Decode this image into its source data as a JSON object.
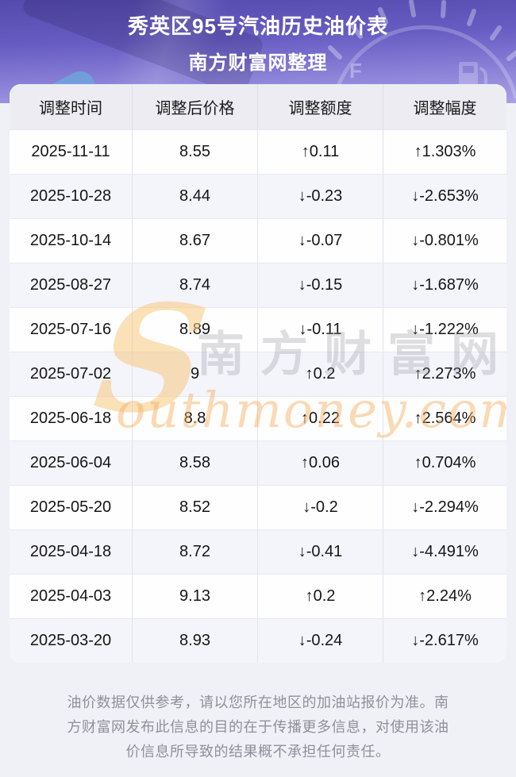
{
  "hero": {
    "title_line1": "秀英区95号汽油历史油价表",
    "title_line2": "南方财富网整理",
    "gauge_full_label": "F"
  },
  "table": {
    "columns": [
      "调整时间",
      "调整后价格",
      "调整额度",
      "调整幅度"
    ],
    "rows": [
      {
        "date": "2025-11-11",
        "price": "8.55",
        "change": "↑0.11",
        "percent": "↑1.303%",
        "trend": "up"
      },
      {
        "date": "2025-10-28",
        "price": "8.44",
        "change": "↓-0.23",
        "percent": "↓-2.653%",
        "trend": "down"
      },
      {
        "date": "2025-10-14",
        "price": "8.67",
        "change": "↓-0.07",
        "percent": "↓-0.801%",
        "trend": "down"
      },
      {
        "date": "2025-08-27",
        "price": "8.74",
        "change": "↓-0.15",
        "percent": "↓-1.687%",
        "trend": "down"
      },
      {
        "date": "2025-07-16",
        "price": "8.89",
        "change": "↓-0.11",
        "percent": "↓-1.222%",
        "trend": "down"
      },
      {
        "date": "2025-07-02",
        "price": "9",
        "change": "↑0.2",
        "percent": "↑2.273%",
        "trend": "up"
      },
      {
        "date": "2025-06-18",
        "price": "8.8",
        "change": "↑0.22",
        "percent": "↑2.564%",
        "trend": "up"
      },
      {
        "date": "2025-06-04",
        "price": "8.58",
        "change": "↑0.06",
        "percent": "↑0.704%",
        "trend": "up"
      },
      {
        "date": "2025-05-20",
        "price": "8.52",
        "change": "↓-0.2",
        "percent": "↓-2.294%",
        "trend": "down"
      },
      {
        "date": "2025-04-18",
        "price": "8.72",
        "change": "↓-0.41",
        "percent": "↓-4.491%",
        "trend": "down"
      },
      {
        "date": "2025-04-03",
        "price": "9.13",
        "change": "↑0.2",
        "percent": "↑2.24%",
        "trend": "up"
      },
      {
        "date": "2025-03-20",
        "price": "8.93",
        "change": "↓-0.24",
        "percent": "↓-2.617%",
        "trend": "down"
      }
    ]
  },
  "watermark": {
    "s_initial": "S",
    "cn": "南方财富网",
    "en_rest": "outhmoney.com"
  },
  "disclaimer": "油价数据仅供参考，请以您所在地区的加油站报价为准。南方财富网发布此信息的目的在于传播更多信息，对使用该油价信息所导致的结果概不承担任何责任。",
  "colors": {
    "up": "#fe0000",
    "down": "#089b08"
  }
}
